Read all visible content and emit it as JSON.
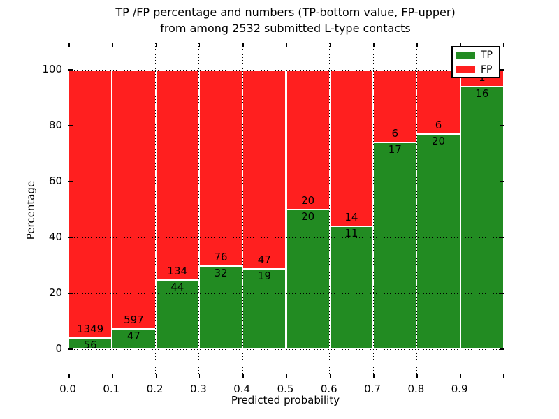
{
  "figure": {
    "title_line1": "TP /FP percentage and numbers (TP-bottom value, FP-upper)",
    "title_line2": "from among 2532 submitted L-type contacts",
    "total_submitted_contacts": "2532"
  },
  "chart_data": {
    "type": "bar",
    "subtype": "stacked-percentage",
    "title": "TP /FP percentage and numbers (TP-bottom value, FP-upper) from among 2532 submitted L-type contacts",
    "xlabel": "Predicted probability",
    "ylabel": "Percentage",
    "categories": [
      "0.0",
      "0.1",
      "0.2",
      "0.3",
      "0.4",
      "0.5",
      "0.6",
      "0.7",
      "0.8",
      "0.9"
    ],
    "x_tick_labels": [
      "0.0",
      "0.1",
      "0.2",
      "0.3",
      "0.4",
      "0.5",
      "0.6",
      "0.7",
      "0.8",
      "0.9"
    ],
    "y_ticks": [
      0,
      20,
      40,
      60,
      80,
      100
    ],
    "xlim": [
      0.0,
      1.0
    ],
    "ylim": [
      -10.25,
      109.5
    ],
    "bin_width": 0.1,
    "grid": "dotted black, drawn above bars",
    "bar_edge_color": "#ffffff",
    "series": [
      {
        "name": "TP",
        "color": "#228b22",
        "counts": [
          56,
          47,
          44,
          32,
          19,
          20,
          11,
          17,
          20,
          16
        ]
      },
      {
        "name": "FP",
        "color": "#ff1f1f",
        "counts": [
          1349,
          597,
          134,
          76,
          47,
          20,
          14,
          6,
          6,
          1
        ]
      }
    ],
    "tp_percent": [
      3.99,
      7.3,
      24.72,
      29.63,
      28.79,
      50.0,
      44.0,
      73.91,
      76.92,
      94.12
    ],
    "legend": {
      "position": "upper right",
      "items": [
        {
          "label": "TP",
          "color": "#228b22"
        },
        {
          "label": "FP",
          "color": "#ff1f1f"
        }
      ]
    }
  }
}
